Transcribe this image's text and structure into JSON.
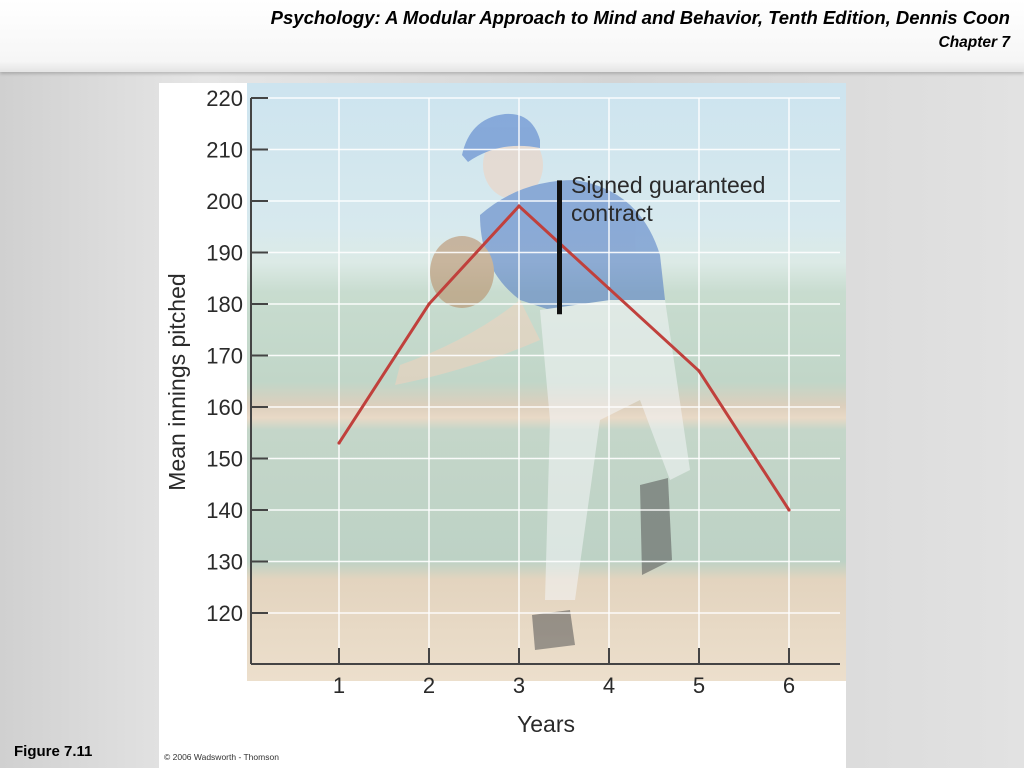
{
  "header": {
    "book_title": "Psychology: A Modular Approach to Mind and Behavior, Tenth Edition, Dennis Coon",
    "chapter": "Chapter 7"
  },
  "figure_label": "Figure 7.11",
  "copyright": "© 2006 Wadsworth - Thomson",
  "colors": {
    "line": "#c0403c",
    "contract_marker": "#111111",
    "gridline": "#ffffff",
    "axis": "#444444"
  },
  "chart_data": {
    "type": "line",
    "xlabel": "Years",
    "ylabel": "Mean innings pitched",
    "x": [
      1,
      2,
      3,
      4,
      5,
      6
    ],
    "xlim": [
      0.1,
      6.6
    ],
    "ylim": [
      110,
      223
    ],
    "y_ticks": [
      120,
      130,
      140,
      150,
      160,
      170,
      180,
      190,
      200,
      210,
      220
    ],
    "x_ticks": [
      1,
      2,
      3,
      4,
      5,
      6
    ],
    "series": [
      {
        "values": [
          153,
          180,
          199,
          183,
          167,
          140
        ]
      }
    ],
    "annotation": {
      "text_line1": "Signed guaranteed",
      "text_line2": "contract",
      "x": 3.45,
      "y_range": [
        178,
        204
      ]
    },
    "grid": true,
    "background": "photo of a baseball pitcher mid-throw"
  }
}
